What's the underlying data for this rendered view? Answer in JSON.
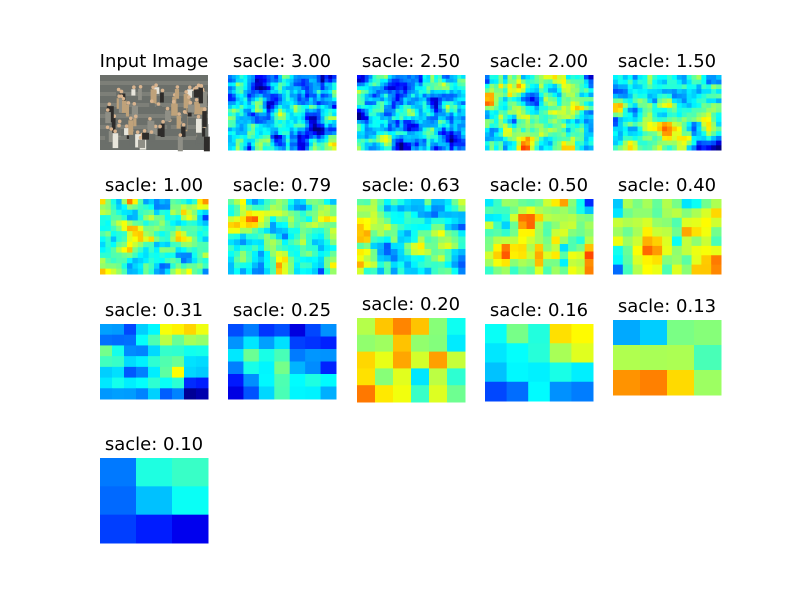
{
  "chart_data": {
    "type": "heatmap",
    "colormap": "jet",
    "grid": false,
    "axes": "hidden",
    "panels": [
      {
        "title": "Input Image",
        "kind": "photo",
        "photo_colors": [
          "#6b6f6a",
          "#e8e6dc",
          "#2e2c2a",
          "#bfa27a",
          "#8f8f86"
        ]
      },
      {
        "title": "sacle: 3.00",
        "kind": "heatmap",
        "grid_size": [
          28,
          20
        ],
        "mean": 0.3,
        "contrast": 0.55,
        "seed": 11
      },
      {
        "title": "sacle: 2.50",
        "kind": "heatmap",
        "grid_size": [
          28,
          20
        ],
        "mean": 0.32,
        "contrast": 0.55,
        "seed": 12
      },
      {
        "title": "sacle: 2.00",
        "kind": "heatmap",
        "grid_size": [
          24,
          17
        ],
        "mean": 0.45,
        "contrast": 0.55,
        "seed": 13
      },
      {
        "title": "sacle: 1.50",
        "kind": "heatmap",
        "grid_size": [
          22,
          16
        ],
        "mean": 0.42,
        "contrast": 0.6,
        "seed": 14
      },
      {
        "title": "sacle: 1.00",
        "kind": "heatmap",
        "grid_size": [
          20,
          14
        ],
        "mean": 0.45,
        "contrast": 0.55,
        "seed": 15
      },
      {
        "title": "sacle: 0.79",
        "kind": "heatmap",
        "grid_size": [
          18,
          13
        ],
        "mean": 0.48,
        "contrast": 0.6,
        "seed": 16
      },
      {
        "title": "sacle: 0.63",
        "kind": "heatmap",
        "grid_size": [
          16,
          12
        ],
        "mean": 0.48,
        "contrast": 0.6,
        "seed": 17
      },
      {
        "title": "sacle: 0.50",
        "kind": "heatmap",
        "grid_size": [
          13,
          10
        ],
        "mean": 0.55,
        "contrast": 0.55,
        "seed": 18
      },
      {
        "title": "sacle: 0.40",
        "kind": "heatmap",
        "grid_size": [
          11,
          8
        ],
        "mean": 0.55,
        "contrast": 0.55,
        "seed": 19
      },
      {
        "title": "sacle: 0.31",
        "kind": "heatmap",
        "grid_size": [
          9,
          7
        ],
        "mean": 0.3,
        "contrast": 0.6,
        "seed": 20
      },
      {
        "title": "sacle: 0.25",
        "kind": "heatmap",
        "grid_size": [
          7,
          6
        ],
        "mean": 0.35,
        "contrast": 0.6,
        "seed": 21
      },
      {
        "title": "sacle: 0.20",
        "kind": "heatmap",
        "grid_size": [
          6,
          5
        ],
        "mean": 0.5,
        "contrast": 0.75,
        "seed": 22
      },
      {
        "title": "sacle: 0.16",
        "kind": "heatmap",
        "grid_size": [
          5,
          4
        ],
        "mean": 0.5,
        "contrast": 0.75,
        "seed": 23
      },
      {
        "title": "sacle: 0.13",
        "kind": "heatmap",
        "grid_size": [
          4,
          3
        ],
        "mean": 0.45,
        "contrast": 0.9,
        "seed": 24
      },
      {
        "title": "sacle: 0.10",
        "kind": "heatmap",
        "grid_size": [
          3,
          3
        ],
        "mean": 0.5,
        "contrast": 0.9,
        "seed": 25
      }
    ]
  }
}
